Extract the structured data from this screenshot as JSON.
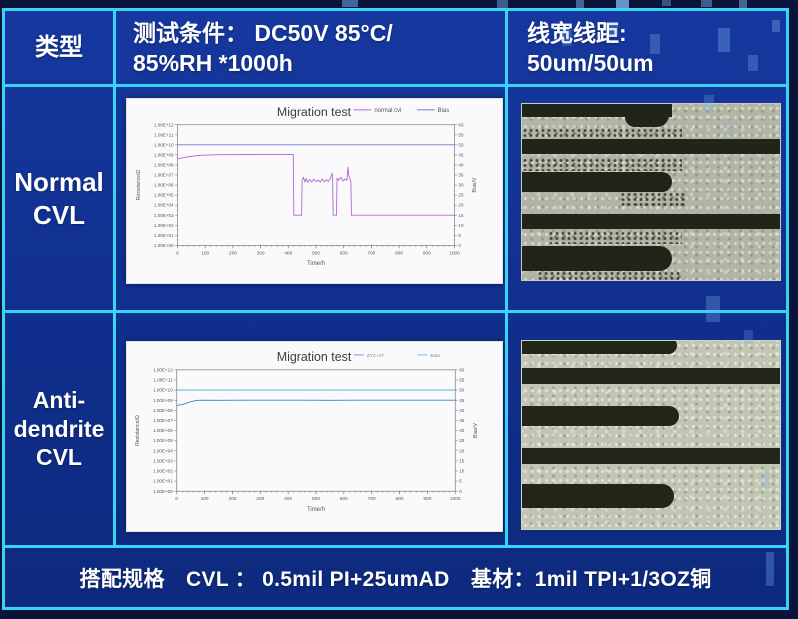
{
  "header": {
    "type_label": "类型",
    "condition": "测试条件： DC50V 85°C/\n85%RH *1000h",
    "line_width": "线宽线距:\n50um/50um"
  },
  "rows": [
    {
      "label": "Normal\nCVL"
    },
    {
      "label": "Anti-\ndendrite\nCVL"
    }
  ],
  "footer": {
    "spec": "搭配规格　CVL ： 0.5mil PI+25umAD　基材：1mil TPI+1/3OZ铜"
  },
  "colors": {
    "background_navy": "#081439",
    "cell_blue": "#13349a",
    "border_cyan": "#38d4f5",
    "chart_panel": "#fafafc",
    "normal_cvl_line": "#b266cc",
    "bias_line_1": "#7b72d8",
    "anti_dendrite_line": "#3f7fc1",
    "bias_line_2": "#45a8dc"
  },
  "chart_data": [
    {
      "type": "line",
      "title": "Migration test",
      "x": {
        "min": 0,
        "max": 1000,
        "step": 100,
        "minor_step": 20,
        "label": "Time/h"
      },
      "y_left": {
        "label": "Resistance/Ω",
        "scale": "log10",
        "ticks": [
          "1.00E+12",
          "1.00E+11",
          "1.00E+10",
          "1.00E+09",
          "1.00E+08",
          "1.00E+07",
          "1.00E+06",
          "1.00E+05",
          "1.00E+04",
          "1.00E+03",
          "1.00E+02",
          "1.00E+01",
          "1.00E+00"
        ]
      },
      "y_right": {
        "min": 0,
        "max": 60,
        "step": 5,
        "label": "Bias/V"
      },
      "legend": [
        {
          "label": "normal cvl",
          "color": "#b266cc"
        },
        {
          "label": "Bias",
          "color": "#7b72d8"
        }
      ],
      "legend_faint": false,
      "series": [
        {
          "name": "normal cvl",
          "color": "#b266cc",
          "axis": "left",
          "points": [
            [
              0,
              400000000
            ],
            [
              30,
              600000000
            ],
            [
              80,
              900000000
            ],
            [
              150,
              1050000000
            ],
            [
              300,
              1100000000
            ],
            [
              418,
              1100000000
            ],
            [
              420,
              1000
            ],
            [
              448,
              1000
            ],
            [
              450,
              3000000
            ],
            [
              455,
              6000000
            ],
            [
              460,
              2000000
            ],
            [
              465,
              4500000
            ],
            [
              470,
              1800000
            ],
            [
              478,
              3500000
            ],
            [
              485,
              2000000
            ],
            [
              492,
              4000000
            ],
            [
              500,
              2200000
            ],
            [
              508,
              3200000
            ],
            [
              515,
              2000000
            ],
            [
              522,
              4200000
            ],
            [
              530,
              2100000
            ],
            [
              538,
              3500000
            ],
            [
              545,
              2300000
            ],
            [
              552,
              5000000
            ],
            [
              558,
              15000000
            ],
            [
              560,
              4000000
            ],
            [
              562,
              1000
            ],
            [
              574,
              1000
            ],
            [
              576,
              5000000
            ],
            [
              582,
              3000000
            ],
            [
              590,
              6000000
            ],
            [
              598,
              2500000
            ],
            [
              605,
              4000000
            ],
            [
              612,
              3000000
            ],
            [
              615,
              60000000
            ],
            [
              618,
              10000000
            ],
            [
              622,
              5000000
            ],
            [
              626,
              2000000
            ],
            [
              628,
              1000
            ],
            [
              1000,
              1000
            ]
          ]
        },
        {
          "name": "Bias",
          "color": "#7b72d8",
          "axis": "right",
          "points": [
            [
              0,
              50
            ],
            [
              1000,
              50
            ]
          ]
        }
      ]
    },
    {
      "type": "line",
      "title": "Migration test",
      "x": {
        "min": 0,
        "max": 1000,
        "step": 100,
        "minor_step": 20,
        "label": "Time/h"
      },
      "y_left": {
        "label": "Resistance/Ω",
        "scale": "log10",
        "ticks": [
          "1.00E+12",
          "1.00E+11",
          "1.00E+10",
          "1.00E+09",
          "1.00E+08",
          "1.00E+07",
          "1.00E+06",
          "1.00E+05",
          "1.00E+04",
          "1.00E+03",
          "1.00E+02",
          "1.00E+01",
          "1.00E+00"
        ]
      },
      "y_right": {
        "min": 0,
        "max": 60,
        "step": 5,
        "label": "Bias/V"
      },
      "legend": [
        {
          "label": "ZYC-47",
          "color": "#3f7fc1"
        },
        {
          "label": "Bias",
          "color": "#45a8dc"
        }
      ],
      "legend_faint": true,
      "series": [
        {
          "name": "ZYC-47",
          "color": "#3f7fc1",
          "axis": "left",
          "points": [
            [
              0,
              300000000
            ],
            [
              15,
              350000000
            ],
            [
              30,
              450000000
            ],
            [
              50,
              700000000
            ],
            [
              70,
              950000000
            ],
            [
              90,
              1000000000
            ],
            [
              150,
              980000000
            ],
            [
              250,
              1000000000
            ],
            [
              350,
              990000000
            ],
            [
              450,
              1000000000
            ],
            [
              550,
              980000000
            ],
            [
              650,
              1000000000
            ],
            [
              750,
              990000000
            ],
            [
              850,
              1000000000
            ],
            [
              1000,
              1000000000
            ]
          ]
        },
        {
          "name": "Bias",
          "color": "#45a8dc",
          "axis": "right",
          "points": [
            [
              0,
              50
            ],
            [
              1000,
              50
            ]
          ]
        }
      ]
    }
  ]
}
